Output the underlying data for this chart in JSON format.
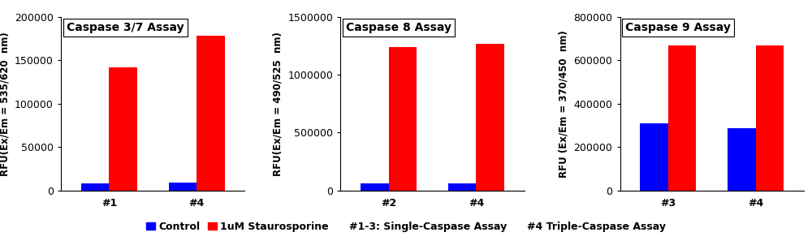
{
  "panel1": {
    "title": "Caspase 3/7 Assay",
    "ylabel": "RFU(Ex/Em = 535/620  nm)",
    "categories": [
      "#1",
      "#4"
    ],
    "blue_values": [
      8000,
      9000
    ],
    "red_values": [
      142000,
      178000
    ],
    "ylim": [
      0,
      200000
    ],
    "yticks": [
      0,
      50000,
      100000,
      150000,
      200000
    ]
  },
  "panel2": {
    "title": "Caspase 8 Assay",
    "ylabel": "RFU(Ex/Em = 490/525  nm)",
    "categories": [
      "#2",
      "#4"
    ],
    "blue_values": [
      60000,
      58000
    ],
    "red_values": [
      1240000,
      1270000
    ],
    "ylim": [
      0,
      1500000
    ],
    "yticks": [
      0,
      500000,
      1000000,
      1500000
    ]
  },
  "panel3": {
    "title": "Caspase 9 Assay",
    "ylabel": "RFU (Ex/Em = 370/450  nm)",
    "categories": [
      "#3",
      "#4"
    ],
    "blue_values": [
      310000,
      285000
    ],
    "red_values": [
      670000,
      670000
    ],
    "ylim": [
      0,
      800000
    ],
    "yticks": [
      0,
      200000,
      400000,
      600000,
      800000
    ]
  },
  "blue_color": "#0000FF",
  "red_color": "#FF0000",
  "legend_labels": [
    "Control",
    "1uM Staurosporine",
    "#1-3: Single-Caspase Assay",
    "#4 Triple-Caspase Assay"
  ],
  "bar_width": 0.32,
  "title_fontsize": 10,
  "axis_fontsize": 8.5,
  "tick_fontsize": 9,
  "legend_fontsize": 9
}
